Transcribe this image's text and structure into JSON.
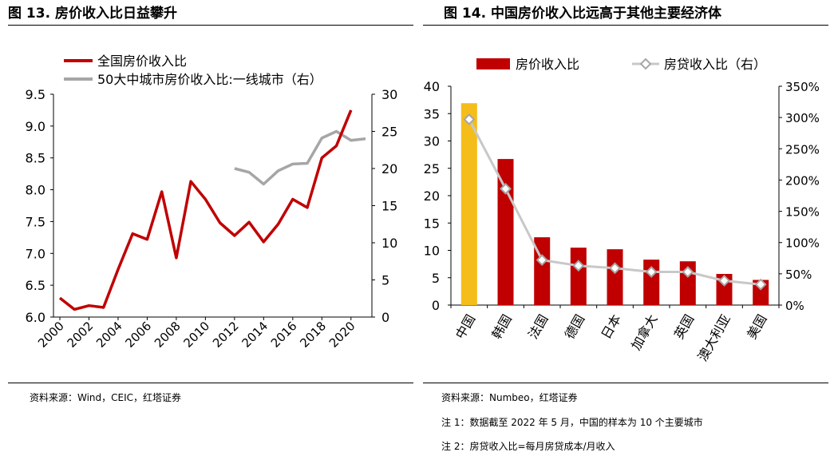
{
  "left": {
    "title": "图 13. 房价收入比日益攀升",
    "source": "资料来源：Wind，CEIC，红塔证券"
  },
  "right": {
    "title": "图 14. 中国房价收入比远高于其他主要经济体",
    "source": "资料来源：Numbeo，红塔证券",
    "note1": "注 1：数据截至 2022 年 5 月，中国的样本为 10 个主要城市",
    "note2": "注 2：房贷收入比=每月房贷成本/月收入"
  },
  "colors": {
    "red": "#c00000",
    "gray": "#a6a6a6",
    "gold": "#f5bd1a",
    "white": "#ffffff"
  },
  "chart_data": [
    {
      "type": "line",
      "title": "图 13. 房价收入比日益攀升",
      "xlabel": "",
      "ylabel": "",
      "x_tick_labels": [
        "2000",
        "2002",
        "2004",
        "2006",
        "2008",
        "2010",
        "2012",
        "2014",
        "2016",
        "2018",
        "2020"
      ],
      "y_left_ticks": [
        "6.0",
        "6.5",
        "7.0",
        "7.5",
        "8.0",
        "8.5",
        "9.0",
        "9.5"
      ],
      "y_left_lim": [
        6.0,
        9.5
      ],
      "y_right_ticks": [
        "0",
        "5",
        "10",
        "15",
        "20",
        "25",
        "30"
      ],
      "y_right_lim": [
        0,
        30
      ],
      "series": [
        {
          "name": "全国房价收入比",
          "axis": "left",
          "color": "#c00000",
          "x": [
            2000,
            2001,
            2002,
            2003,
            2004,
            2005,
            2006,
            2007,
            2008,
            2009,
            2010,
            2011,
            2012,
            2013,
            2014,
            2015,
            2016,
            2017,
            2018,
            2019,
            2020
          ],
          "values": [
            6.3,
            6.12,
            6.18,
            6.15,
            6.75,
            7.31,
            7.22,
            7.97,
            6.93,
            8.13,
            7.85,
            7.48,
            7.28,
            7.49,
            7.18,
            7.46,
            7.85,
            7.72,
            8.5,
            8.69,
            9.25
          ]
        },
        {
          "name": "50大中城市房价收入比:一线城市（右）",
          "axis": "right",
          "color": "#a6a6a6",
          "x": [
            2012,
            2013,
            2014,
            2015,
            2016,
            2017,
            2018,
            2019,
            2020,
            2021
          ],
          "values": [
            20.0,
            19.5,
            17.9,
            19.7,
            20.6,
            20.7,
            24.1,
            25.0,
            23.8,
            24.0
          ]
        }
      ],
      "legend_position": "top-left"
    },
    {
      "type": "bar",
      "title": "图 14. 中国房价收入比远高于其他主要经济体",
      "categories": [
        "中国",
        "韩国",
        "法国",
        "德国",
        "日本",
        "加拿大",
        "英国",
        "澳大利亚",
        "美国"
      ],
      "y_left_ticks": [
        "0",
        "5",
        "10",
        "15",
        "20",
        "25",
        "30",
        "35",
        "40"
      ],
      "y_left_lim": [
        0,
        40
      ],
      "y_right_ticks": [
        "0%",
        "50%",
        "100%",
        "150%",
        "200%",
        "250%",
        "300%",
        "350%"
      ],
      "y_right_lim": [
        0,
        350
      ],
      "series": [
        {
          "name": "房价收入比",
          "type": "bar",
          "axis": "left",
          "color": "#c00000",
          "highlight_color": "#f5bd1a",
          "highlight_index": 0,
          "values": [
            36.9,
            26.7,
            12.4,
            10.5,
            10.2,
            8.3,
            8.0,
            5.7,
            4.6
          ]
        },
        {
          "name": "房贷收入比（右）",
          "type": "line",
          "axis": "right",
          "color": "#c8c8c8",
          "marker": "diamond",
          "unit": "%",
          "values": [
            297,
            186,
            72,
            63,
            59,
            53,
            53,
            39,
            33
          ]
        }
      ],
      "legend_position": "top"
    }
  ]
}
